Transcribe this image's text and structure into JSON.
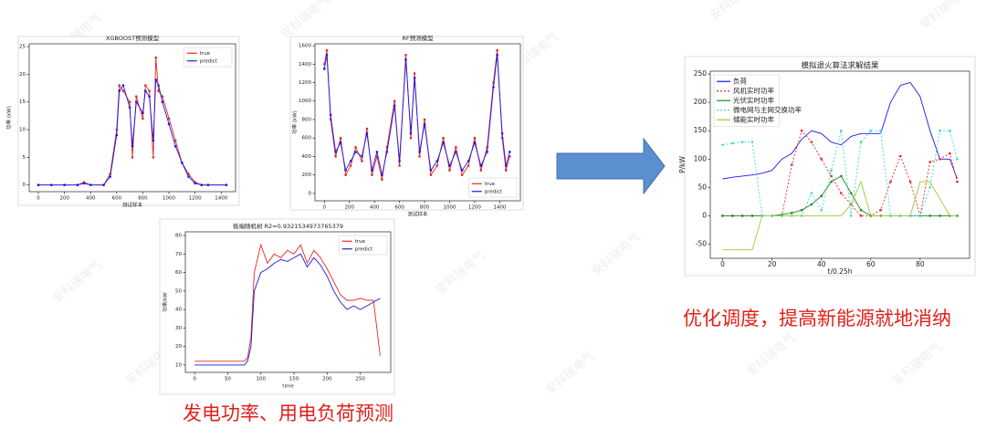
{
  "chart_data": [
    {
      "type": "line",
      "title": "XGBOOST预测模型",
      "x_label": "测试样本",
      "y_label": "功率 (kW)",
      "x": [
        0,
        100,
        200,
        300,
        350,
        400,
        500,
        550,
        600,
        620,
        650,
        700,
        720,
        750,
        800,
        820,
        850,
        880,
        900,
        920,
        950,
        1000,
        1050,
        1100,
        1150,
        1200,
        1250,
        1300,
        1440
      ],
      "series": [
        {
          "name": "true",
          "color": "#e8281e",
          "marker": true,
          "values": [
            0,
            0,
            0,
            0,
            0.5,
            0,
            0,
            2,
            10,
            18,
            17,
            15,
            5,
            16,
            12,
            18,
            17,
            5,
            23,
            17,
            16,
            12,
            8,
            4,
            2,
            0.5,
            0,
            0,
            0
          ]
        },
        {
          "name": "predict",
          "color": "#1a1ae8",
          "marker": true,
          "values": [
            0,
            0,
            0,
            0,
            0.3,
            0,
            0,
            1.5,
            9,
            17,
            18,
            14,
            7,
            15,
            13,
            17,
            16,
            8,
            19,
            18,
            15,
            11,
            7,
            4,
            1.5,
            0.3,
            0,
            0,
            0
          ]
        }
      ],
      "xlim": [
        -70,
        1510
      ],
      "ylim": [
        -1.2,
        25.5
      ],
      "xticks": [
        0,
        200,
        400,
        600,
        800,
        1000,
        1200,
        1400
      ],
      "yticks": [
        0,
        5,
        10,
        15,
        20,
        25
      ],
      "legend": "upper right"
    },
    {
      "type": "line",
      "title": "RF预测模型",
      "x_label": "测试样本",
      "y_label": "功率 (kW)",
      "x": [
        0,
        20,
        50,
        90,
        130,
        170,
        210,
        250,
        300,
        340,
        380,
        420,
        460,
        500,
        560,
        600,
        650,
        690,
        720,
        760,
        800,
        850,
        900,
        950,
        1000,
        1050,
        1100,
        1150,
        1200,
        1250,
        1300,
        1350,
        1380,
        1420,
        1450,
        1480
      ],
      "series": [
        {
          "name": "true",
          "color": "#e8281e",
          "marker": true,
          "values": [
            1400,
            1550,
            800,
            400,
            600,
            200,
            300,
            500,
            350,
            700,
            200,
            400,
            150,
            500,
            1000,
            300,
            1500,
            600,
            1300,
            400,
            800,
            200,
            300,
            600,
            250,
            500,
            200,
            300,
            600,
            250,
            500,
            1200,
            1550,
            600,
            250,
            400
          ]
        },
        {
          "name": "predict",
          "color": "#1a1ae8",
          "marker": true,
          "values": [
            1350,
            1500,
            850,
            450,
            550,
            250,
            350,
            450,
            400,
            650,
            250,
            450,
            200,
            450,
            950,
            350,
            1450,
            650,
            1250,
            450,
            750,
            250,
            350,
            550,
            300,
            450,
            250,
            350,
            550,
            300,
            450,
            1150,
            1500,
            650,
            300,
            450
          ]
        }
      ],
      "xlim": [
        -75,
        1565
      ],
      "ylim": [
        -80,
        1620
      ],
      "xticks": [
        0,
        200,
        400,
        600,
        800,
        1000,
        1200,
        1400
      ],
      "yticks": [
        0,
        200,
        400,
        600,
        800,
        1000,
        1200,
        1400,
        1600
      ],
      "legend": "lower right"
    },
    {
      "type": "line",
      "title": "极端随机树 R2=0.9321534973765379",
      "x_label": "time",
      "y_label": "功率/kW",
      "x": [
        0,
        10,
        20,
        30,
        40,
        50,
        60,
        70,
        75,
        80,
        85,
        90,
        100,
        110,
        120,
        130,
        140,
        150,
        160,
        170,
        180,
        190,
        200,
        210,
        220,
        230,
        240,
        250,
        260,
        270,
        280
      ],
      "series": [
        {
          "name": "true",
          "color": "#e8281e",
          "marker": false,
          "values": [
            12,
            12,
            12,
            12,
            12,
            12,
            12,
            12,
            12,
            14,
            25,
            60,
            75,
            65,
            70,
            68,
            72,
            70,
            75,
            65,
            72,
            68,
            62,
            55,
            48,
            45,
            45,
            46,
            45,
            45,
            15
          ]
        },
        {
          "name": "predict",
          "color": "#1a1ae8",
          "marker": false,
          "values": [
            10,
            10,
            10,
            10,
            10,
            10,
            10,
            10,
            10,
            12,
            20,
            50,
            60,
            62,
            65,
            67,
            66,
            68,
            70,
            63,
            68,
            64,
            58,
            50,
            44,
            40,
            42,
            40,
            42,
            44,
            46
          ]
        }
      ],
      "xlim": [
        -14,
        296
      ],
      "ylim": [
        6,
        82
      ],
      "xticks": [
        0,
        50,
        100,
        150,
        200,
        250
      ],
      "yticks": [
        10,
        20,
        30,
        40,
        50,
        60,
        70,
        80
      ],
      "legend": "upper right"
    },
    {
      "type": "line",
      "title": "模拟退火算法求解结果",
      "x_label": "t/0.25h",
      "y_label": "P/kW",
      "x": [
        0,
        4,
        8,
        12,
        16,
        20,
        24,
        28,
        32,
        36,
        40,
        44,
        48,
        52,
        56,
        60,
        64,
        68,
        72,
        76,
        80,
        84,
        88,
        92,
        95
      ],
      "series": [
        {
          "name": "负荷",
          "color": "#1a1ae8",
          "marker": false,
          "values": [
            65,
            68,
            70,
            72,
            75,
            80,
            100,
            110,
            135,
            150,
            145,
            130,
            125,
            140,
            145,
            145,
            145,
            200,
            230,
            235,
            210,
            150,
            100,
            100,
            65
          ]
        },
        {
          "name": "风机实时功率",
          "color": "#e8281e",
          "marker": true,
          "dash": true,
          "values": [
            0,
            0,
            0,
            0,
            0,
            0,
            0,
            90,
            150,
            130,
            100,
            70,
            40,
            20,
            0,
            0,
            10,
            60,
            105,
            60,
            0,
            95,
            100,
            110,
            60
          ]
        },
        {
          "name": "光伏实时功率",
          "color": "#1e8a1e",
          "marker": true,
          "values": [
            0,
            0,
            0,
            0,
            0,
            0,
            2,
            5,
            10,
            20,
            35,
            60,
            70,
            40,
            10,
            0,
            0,
            0,
            0,
            0,
            0,
            0,
            0,
            0,
            0
          ]
        },
        {
          "name": "微电网与主网交换功率",
          "color": "#40d8d0",
          "marker": true,
          "dash": true,
          "values": [
            125,
            128,
            130,
            130,
            0,
            0,
            0,
            0,
            0,
            40,
            10,
            80,
            150,
            0,
            130,
            150,
            150,
            0,
            0,
            0,
            0,
            50,
            150,
            150,
            100
          ]
        },
        {
          "name": "储能实时功率",
          "color": "#9acd32",
          "marker": false,
          "values": [
            -60,
            -60,
            -60,
            -60,
            0,
            0,
            0,
            0,
            0,
            0,
            0,
            0,
            0,
            20,
            60,
            0,
            0,
            0,
            0,
            0,
            60,
            60,
            30,
            0,
            0
          ]
        }
      ],
      "xlim": [
        -5,
        100
      ],
      "ylim": [
        -75,
        255
      ],
      "xticks": [
        0,
        20,
        40,
        60,
        80
      ],
      "yticks": [
        -50,
        0,
        50,
        100,
        150,
        200,
        250
      ],
      "legend": "upper left"
    }
  ],
  "captions": [
    "发电功率、用电负荷预测",
    "优化调度，提高新能源就地消纳"
  ],
  "watermark": "安科瑞电气"
}
